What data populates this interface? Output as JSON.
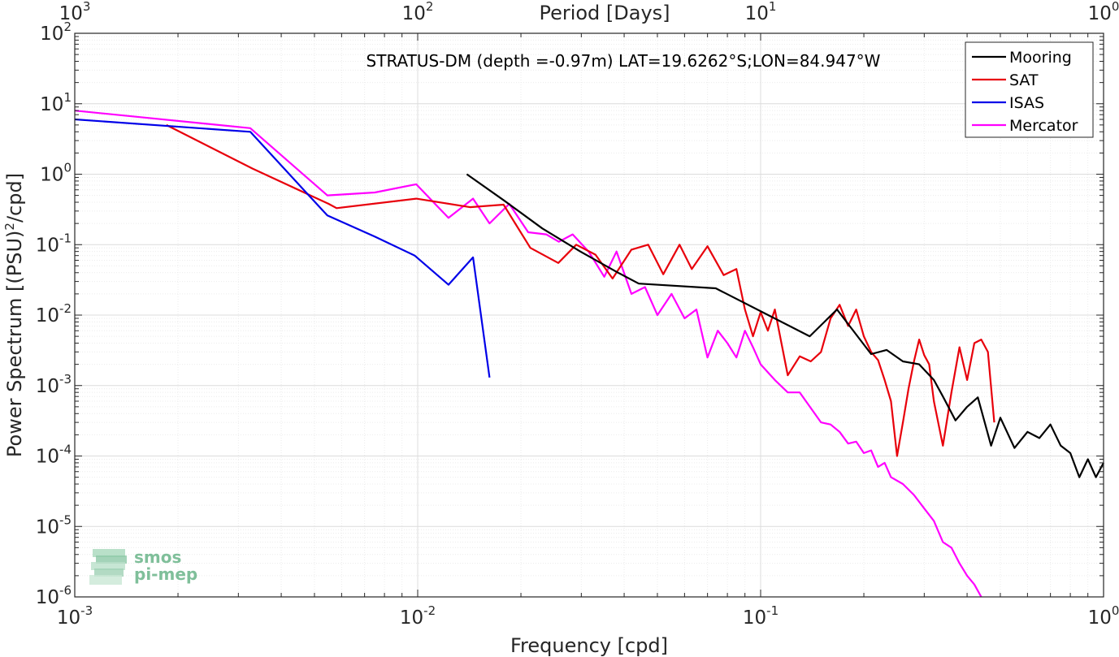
{
  "chart_data": {
    "type": "line",
    "title": "STRATUS-DM (depth =-0.97m) LAT=19.6262°S;LON=84.947°W",
    "xlabel": "Frequency [cpd]",
    "ylabel": "Power Spectrum [(PSU)2/cpd]",
    "ylabel_parts": {
      "base": "Power Spectrum [(PSU)",
      "sup": "2",
      "rest": "/cpd]"
    },
    "x2label": "Period [Days]",
    "xscale": "log",
    "yscale": "log",
    "xlim": [
      0.001,
      1
    ],
    "ylim": [
      1e-06,
      100
    ],
    "grid": true,
    "legend_position": "top-right",
    "x_ticks": [
      {
        "base": "10",
        "exp": "-3"
      },
      {
        "base": "10",
        "exp": "-2"
      },
      {
        "base": "10",
        "exp": "-1"
      },
      {
        "base": "10",
        "exp": "0"
      }
    ],
    "y_ticks": [
      {
        "base": "10",
        "exp": "-6"
      },
      {
        "base": "10",
        "exp": "-5"
      },
      {
        "base": "10",
        "exp": "-4"
      },
      {
        "base": "10",
        "exp": "-3"
      },
      {
        "base": "10",
        "exp": "-2"
      },
      {
        "base": "10",
        "exp": "-1"
      },
      {
        "base": "10",
        "exp": "0"
      },
      {
        "base": "10",
        "exp": "1"
      },
      {
        "base": "10",
        "exp": "2"
      }
    ],
    "x2_ticks": [
      {
        "base": "10",
        "exp": "3"
      },
      {
        "base": "10",
        "exp": "2"
      },
      {
        "base": "10",
        "exp": "1"
      },
      {
        "base": "10",
        "exp": "0"
      }
    ],
    "series": [
      {
        "name": "Mooring",
        "color": "#000000",
        "x": [
          0.0139,
          0.0179,
          0.0231,
          0.0298,
          0.0384,
          0.0441,
          0.074,
          0.139,
          0.167,
          0.21,
          0.233,
          0.26,
          0.29,
          0.32,
          0.34,
          0.37,
          0.4,
          0.43,
          0.47,
          0.5,
          0.55,
          0.6,
          0.65,
          0.7,
          0.75,
          0.8,
          0.85,
          0.9,
          0.95,
          1.0
        ],
        "y": [
          1.0,
          0.42,
          0.17,
          0.08,
          0.04,
          0.028,
          0.024,
          0.005,
          0.012,
          0.0028,
          0.0032,
          0.0022,
          0.002,
          0.0012,
          0.0007,
          0.00032,
          0.0005,
          0.00068,
          0.00014,
          0.00035,
          0.00013,
          0.00022,
          0.00018,
          0.00028,
          0.00014,
          0.00011,
          5e-05,
          9e-05,
          5e-05,
          8e-05
        ]
      },
      {
        "name": "SAT",
        "color": "#e8000b",
        "x": [
          0.00185,
          0.0033,
          0.0055,
          0.0058,
          0.0099,
          0.0142,
          0.0178,
          0.0213,
          0.0257,
          0.029,
          0.033,
          0.037,
          0.042,
          0.047,
          0.052,
          0.058,
          0.063,
          0.07,
          0.078,
          0.085,
          0.09,
          0.095,
          0.1,
          0.105,
          0.11,
          0.115,
          0.12,
          0.13,
          0.14,
          0.15,
          0.16,
          0.17,
          0.18,
          0.19,
          0.2,
          0.21,
          0.22,
          0.23,
          0.24,
          0.25,
          0.26,
          0.27,
          0.28,
          0.29,
          0.3,
          0.31,
          0.32,
          0.34,
          0.36,
          0.38,
          0.4,
          0.42,
          0.44,
          0.46,
          0.48
        ],
        "y": [
          5.0,
          1.2,
          0.38,
          0.33,
          0.45,
          0.34,
          0.37,
          0.09,
          0.055,
          0.1,
          0.072,
          0.033,
          0.085,
          0.1,
          0.038,
          0.1,
          0.045,
          0.095,
          0.037,
          0.045,
          0.012,
          0.005,
          0.011,
          0.006,
          0.012,
          0.004,
          0.0014,
          0.0026,
          0.0022,
          0.003,
          0.009,
          0.014,
          0.007,
          0.012,
          0.005,
          0.003,
          0.0023,
          0.0012,
          0.0006,
          0.0001,
          0.0003,
          0.0009,
          0.0022,
          0.0045,
          0.0027,
          0.002,
          0.0006,
          0.00014,
          0.0008,
          0.0035,
          0.0012,
          0.004,
          0.0045,
          0.003,
          0.0003
        ]
      },
      {
        "name": "ISAS",
        "color": "#0000e8",
        "x": [
          0.001,
          0.00325,
          0.00545,
          0.0075,
          0.0098,
          0.0123,
          0.0145,
          0.0162
        ],
        "y": [
          6.0,
          4.0,
          0.26,
          0.13,
          0.07,
          0.027,
          0.066,
          0.0013
        ]
      },
      {
        "name": "Mercator",
        "color": "#ff00ff",
        "x": [
          0.001,
          0.00325,
          0.00545,
          0.0075,
          0.0099,
          0.0123,
          0.0145,
          0.0162,
          0.0185,
          0.021,
          0.0237,
          0.0258,
          0.0283,
          0.0315,
          0.035,
          0.038,
          0.042,
          0.046,
          0.05,
          0.055,
          0.06,
          0.065,
          0.07,
          0.075,
          0.08,
          0.085,
          0.09,
          0.095,
          0.1,
          0.11,
          0.12,
          0.13,
          0.14,
          0.15,
          0.16,
          0.17,
          0.18,
          0.19,
          0.2,
          0.21,
          0.22,
          0.23,
          0.24,
          0.26,
          0.28,
          0.3,
          0.32,
          0.34,
          0.36,
          0.38,
          0.4,
          0.42,
          0.44
        ],
        "y": [
          8.0,
          4.5,
          0.5,
          0.55,
          0.72,
          0.24,
          0.45,
          0.2,
          0.38,
          0.15,
          0.14,
          0.11,
          0.14,
          0.08,
          0.035,
          0.08,
          0.02,
          0.025,
          0.01,
          0.02,
          0.009,
          0.012,
          0.0025,
          0.006,
          0.004,
          0.0025,
          0.006,
          0.0035,
          0.002,
          0.0012,
          0.0008,
          0.0008,
          0.00048,
          0.0003,
          0.00028,
          0.00022,
          0.00015,
          0.00016,
          0.00011,
          0.00012,
          7e-05,
          8e-05,
          5e-05,
          4e-05,
          2.8e-05,
          1.8e-05,
          1.2e-05,
          6e-06,
          5e-06,
          3e-06,
          2e-06,
          1.5e-06,
          1e-06
        ]
      }
    ]
  },
  "watermark": {
    "line1": "smos",
    "line2": "pi-mep",
    "color": "#7fbf9a"
  }
}
